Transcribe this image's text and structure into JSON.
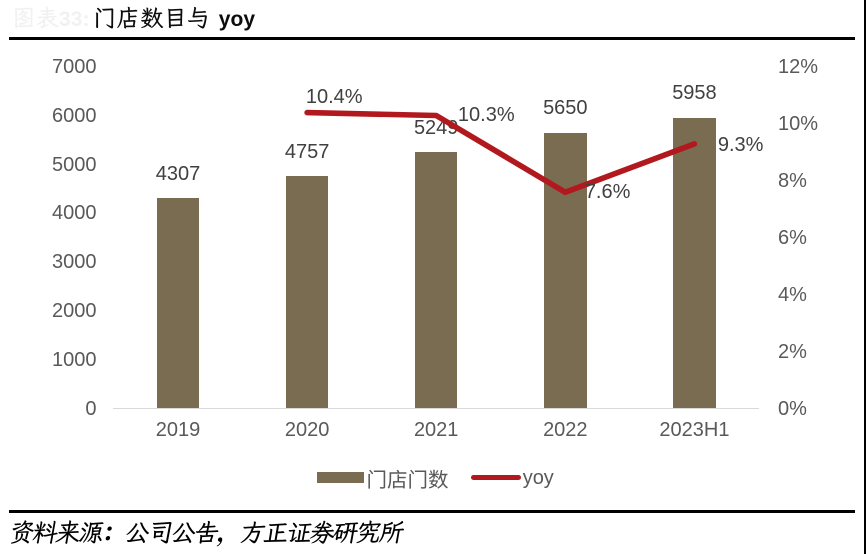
{
  "header": {
    "figure_label": "图表33:",
    "title": "门店数目与 yoy"
  },
  "chart_data": {
    "type": "bar",
    "title": "门店数目与 yoy",
    "categories": [
      "2019",
      "2020",
      "2021",
      "2022",
      "2023H1"
    ],
    "series": [
      {
        "name": "门店门数",
        "type": "bar",
        "axis": "left",
        "values": [
          4307,
          4757,
          5249,
          5650,
          5958
        ],
        "labels": [
          "4307",
          "4757",
          "5249",
          "5650",
          "5958"
        ],
        "color": "#7a6c50"
      },
      {
        "name": "yoy",
        "type": "line",
        "axis": "right",
        "values": [
          null,
          10.4,
          10.3,
          7.6,
          9.3
        ],
        "labels": [
          null,
          "10.4%",
          "10.3%",
          "7.6%",
          "9.3%"
        ],
        "color": "#b2191e"
      }
    ],
    "left_axis": {
      "min": 0,
      "max": 7000,
      "step": 1000,
      "tick_labels": [
        "0",
        "1000",
        "2000",
        "3000",
        "4000",
        "5000",
        "6000",
        "7000"
      ]
    },
    "right_axis": {
      "min": 0,
      "max": 12,
      "step": 2,
      "tick_labels": [
        "0%",
        "2%",
        "4%",
        "6%",
        "8%",
        "10%",
        "12%"
      ]
    },
    "grid": false,
    "legend_position": "bottom",
    "legend": [
      {
        "label": "门店门数",
        "marker": "bar"
      },
      {
        "label": "yoy",
        "marker": "line"
      }
    ],
    "line_label_offsets": [
      null,
      [
        -1.2,
        -15.6
      ],
      [
        21.7,
        0
      ],
      [
        19.5,
        0
      ],
      [
        23.4,
        1.2
      ]
    ]
  },
  "footer": {
    "source_note": "资料来源：公司公告，方正证券研究所"
  }
}
